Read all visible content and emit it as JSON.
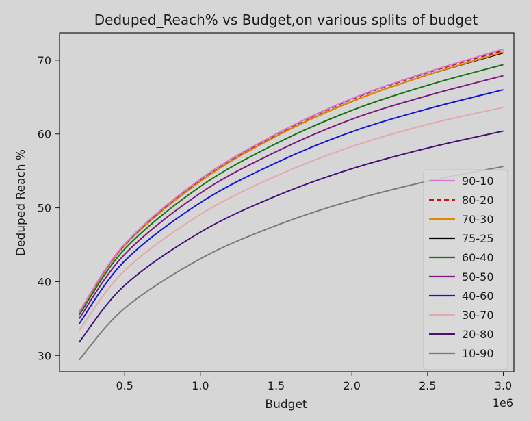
{
  "chart_data": {
    "type": "line",
    "title": "Deduped_Reach% vs Budget,on various splits of budget",
    "xlabel": "Budget",
    "ylabel": "Deduped Reach %",
    "x_offset_label": "1e6",
    "xlim": [
      0.07,
      3.07
    ],
    "ylim": [
      27.8,
      73.7
    ],
    "x_ticks": [
      0.5,
      1.0,
      1.5,
      2.0,
      2.5,
      3.0
    ],
    "x_tick_labels": [
      "0.5",
      "1.0",
      "1.5",
      "2.0",
      "2.5",
      "3.0"
    ],
    "y_ticks": [
      30,
      40,
      50,
      60,
      70
    ],
    "y_tick_labels": [
      "30",
      "40",
      "50",
      "60",
      "70"
    ],
    "grid": false,
    "legend_position": "lower-right",
    "x": [
      0.2,
      0.5,
      1.0,
      1.5,
      2.0,
      2.5,
      3.0
    ],
    "series": [
      {
        "name": "90-10",
        "color": "#d677d6",
        "dash": "solid",
        "values": [
          35.9,
          45.1,
          53.9,
          60.0,
          64.8,
          68.4,
          71.5
        ]
      },
      {
        "name": "80-20",
        "color": "#cc1111",
        "dash": "dashed",
        "values": [
          35.9,
          45.0,
          53.8,
          59.9,
          64.7,
          68.3,
          71.3
        ]
      },
      {
        "name": "70-30",
        "color": "#e08a00",
        "dash": "solid",
        "values": [
          35.8,
          44.9,
          53.6,
          59.7,
          64.4,
          68.0,
          71.1
        ]
      },
      {
        "name": "75-25",
        "color": "#000000",
        "dash": "solid",
        "values": [
          35.8,
          44.9,
          53.6,
          59.7,
          64.4,
          68.0,
          71.0
        ]
      },
      {
        "name": "60-40",
        "color": "#157515",
        "dash": "solid",
        "values": [
          35.5,
          44.4,
          52.9,
          58.7,
          63.2,
          66.6,
          69.4
        ]
      },
      {
        "name": "50-50",
        "color": "#7a1a80",
        "dash": "solid",
        "values": [
          35.0,
          43.7,
          52.0,
          57.6,
          62.0,
          65.2,
          67.9
        ]
      },
      {
        "name": "40-60",
        "color": "#1515dd",
        "dash": "solid",
        "values": [
          34.3,
          42.8,
          50.7,
          56.1,
          60.3,
          63.4,
          66.0
        ]
      },
      {
        "name": "30-70",
        "color": "#e3a9ad",
        "dash": "solid",
        "values": [
          33.4,
          41.5,
          49.1,
          54.3,
          58.3,
          61.3,
          63.6
        ]
      },
      {
        "name": "20-80",
        "color": "#45127a",
        "dash": "solid",
        "values": [
          31.8,
          39.5,
          46.7,
          51.6,
          55.3,
          58.1,
          60.4
        ]
      },
      {
        "name": "10-90",
        "color": "#7a7a7a",
        "dash": "solid",
        "values": [
          29.4,
          36.4,
          43.1,
          47.6,
          51.0,
          53.6,
          55.6
        ]
      }
    ]
  }
}
